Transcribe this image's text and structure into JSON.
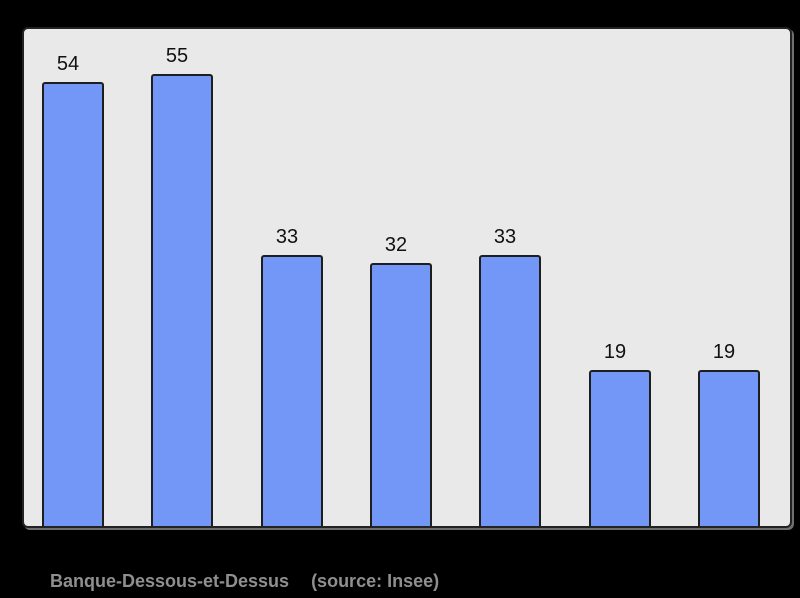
{
  "chart_data": {
    "type": "bar",
    "values": [
      54,
      55,
      33,
      32,
      33,
      19,
      19
    ],
    "title": "",
    "xlabel": "",
    "ylabel": "",
    "ylim": [
      0,
      60
    ],
    "grid": false,
    "legend": false,
    "show_value_labels": true,
    "layout": {
      "orientation": "vertical",
      "value_labels_position": "above-bars"
    },
    "colors": {
      "bar_fill": "#7397f7",
      "bar_border": "#1e1e1e",
      "plot_background": "#e9e9e9",
      "page_background": "#000000",
      "value_label_color": "#111111",
      "caption_color": "#8f8f8f"
    }
  },
  "caption": {
    "title": "Banque-Dessous-et-Dessus",
    "source": "(source: Insee)"
  }
}
